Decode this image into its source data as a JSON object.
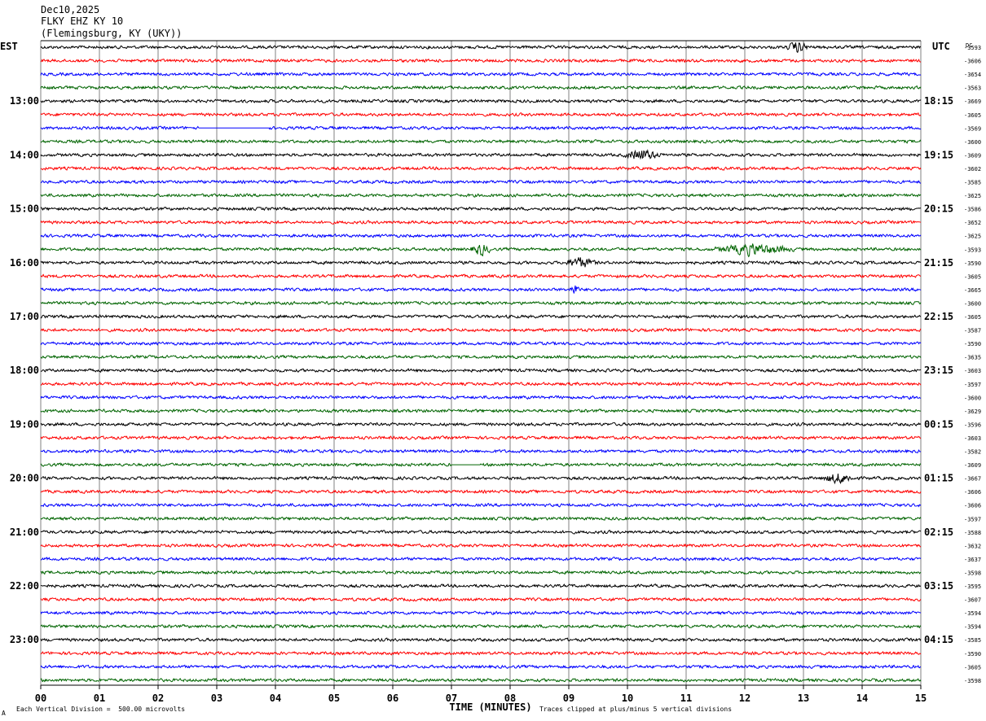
{
  "header": {
    "date": "Dec10,2025",
    "station": "FLKY EHZ KY 10",
    "location": "(Flemingsburg, KY (UKY))"
  },
  "chart_data": {
    "type": "line",
    "title": "Dec10,2025 FLKY EHZ KY 10 (Flemingsburg, KY (UKY))",
    "left_timezone": "EST",
    "right_timezone": "UTC",
    "dc_label": "DC",
    "xlabel": "TIME (MINUTES)",
    "xlim": [
      0,
      15
    ],
    "x_ticks": [
      "00",
      "01",
      "02",
      "03",
      "04",
      "05",
      "06",
      "07",
      "08",
      "09",
      "10",
      "11",
      "12",
      "13",
      "14",
      "15"
    ],
    "grid": "vertical lines at each minute",
    "trace_colors": [
      "#000000",
      "#ff0000",
      "#0000ff",
      "#006400"
    ],
    "trace_minutes_each": 15,
    "trace_count": 48,
    "left_hour_labels": [
      "13:00",
      "14:00",
      "15:00",
      "16:00",
      "17:00",
      "18:00",
      "19:00",
      "20:00",
      "21:00",
      "22:00",
      "23:00"
    ],
    "right_hour_labels": [
      "18:15",
      "19:15",
      "20:15",
      "21:15",
      "22:15",
      "23:15",
      "00:15",
      "01:15",
      "02:15",
      "03:15",
      "04:15"
    ],
    "hour_label_first_trace": 4,
    "dc_offsets": [
      "-3593",
      "-3606",
      "-3654",
      "-3563",
      "-3669",
      "-3605",
      "-3569",
      "-3600",
      "-3609",
      "-3602",
      "-3585",
      "-3625",
      "-3586",
      "-3652",
      "-3625",
      "-3593",
      "-3590",
      "-3605",
      "-3665",
      "-3600",
      "-3605",
      "-3587",
      "-3590",
      "-3635",
      "-3603",
      "-3597",
      "-3600",
      "-3629",
      "-3596",
      "-3603",
      "-3582",
      "-3609",
      "-3667",
      "-3606",
      "-3606",
      "-3597",
      "-3588",
      "-3632",
      "-3637",
      "-3598",
      "-3595",
      "-3607",
      "-3594",
      "-3594",
      "-3585",
      "-3590",
      "-3605",
      "-3598"
    ],
    "events": [
      {
        "trace": 0,
        "minute_start": 12.7,
        "minute_end": 13.1,
        "note": "bursts"
      },
      {
        "trace": 6,
        "minute_start": 2.7,
        "minute_end": 3.9,
        "note": "flat segment"
      },
      {
        "trace": 8,
        "minute_start": 9.9,
        "minute_end": 10.6,
        "note": "bursts"
      },
      {
        "trace": 15,
        "minute_start": 7.3,
        "minute_end": 7.7,
        "note": "small event"
      },
      {
        "trace": 15,
        "minute_start": 11.4,
        "minute_end": 12.9,
        "note": "event"
      },
      {
        "trace": 16,
        "minute_start": 8.9,
        "minute_end": 9.5,
        "note": "event"
      },
      {
        "trace": 18,
        "minute_start": 9.0,
        "minute_end": 9.2,
        "note": "event"
      },
      {
        "trace": 31,
        "minute_start": 7.0,
        "minute_end": 7.5,
        "note": "flat segment"
      },
      {
        "trace": 32,
        "minute_start": 13.3,
        "minute_end": 13.9,
        "note": "bursts"
      }
    ]
  },
  "footer": {
    "scale_note": "Each Vertical Division =  500.00 microvolts",
    "clip_note": "Traces clipped at plus/minus 5 vertical divisions",
    "corner_mark": "A"
  }
}
